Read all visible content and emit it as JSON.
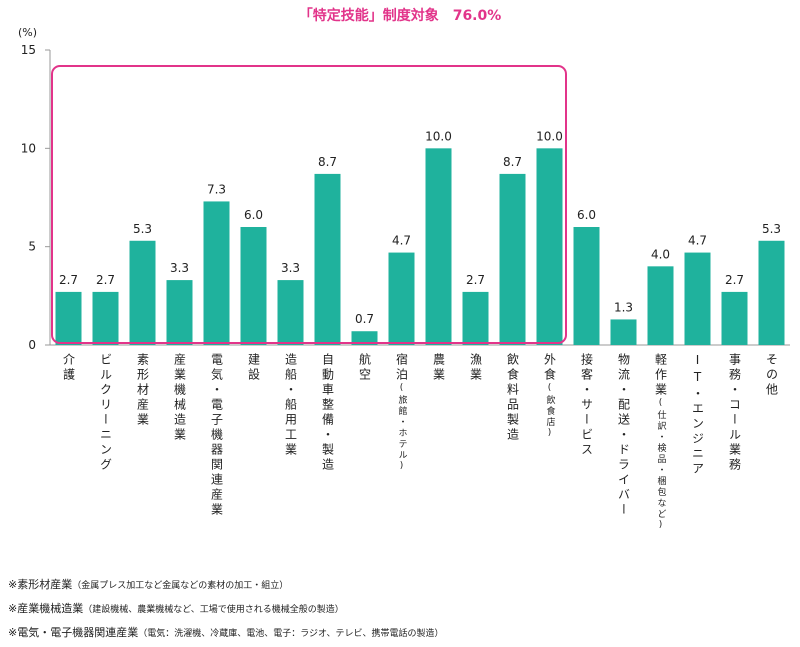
{
  "chart_data": {
    "type": "bar",
    "title": "「特定技能」制度対象　76.0%",
    "y_label": "(%)",
    "categories": [
      "介護",
      "ビルクリーニング",
      "素形材産業",
      "産業機械造業",
      "電気・電子機器関連産業",
      "建設",
      "造船・船用工業",
      "自動車整備・製造",
      "航空",
      "宿泊(旅館・ホテル)",
      "農業",
      "漁業",
      "飲食料品製造",
      "外食(飲食店)",
      "接客・サービス",
      "物流・配送・ドライバー",
      "軽作業(仕訳・検品・梱包など)",
      "IT・エンジニア",
      "事務・コール業務",
      "その他"
    ],
    "values": [
      2.7,
      2.7,
      5.3,
      3.3,
      7.3,
      6.0,
      3.3,
      8.7,
      0.7,
      4.7,
      10.0,
      2.7,
      8.7,
      10.0,
      6.0,
      1.3,
      4.0,
      4.7,
      2.7,
      5.3
    ],
    "value_labels": [
      "2.7",
      "2.7",
      "5.3",
      "3.3",
      "7.3",
      "6.0",
      "3.3",
      "8.7",
      "0.7",
      "4.7",
      "10.0",
      "2.7",
      "8.7",
      "10.0",
      "6.0",
      "1.3",
      "4.0",
      "4.7",
      "2.7",
      "5.3"
    ],
    "color": "#1fb29d",
    "highlight_color": "#e2348a",
    "highlight": {
      "first": 0,
      "last": 13
    },
    "ylim": [
      0,
      15
    ],
    "yticks": [
      0,
      5,
      10,
      15
    ],
    "grid": false
  },
  "notes": [
    {
      "term": "※素形材産業",
      "detail": "（金属プレス加工など金属などの素材の加工・組立）"
    },
    {
      "term": "※産業機械造業",
      "detail": "（建設機械、農業機械など、工場で使用される機械全般の製造）"
    },
    {
      "term": "※電気・電子機器関連産業",
      "detail": "（電気：洗濯機、冷蔵庫、電池、電子：ラジオ、テレビ、携帯電話の製造）"
    }
  ]
}
